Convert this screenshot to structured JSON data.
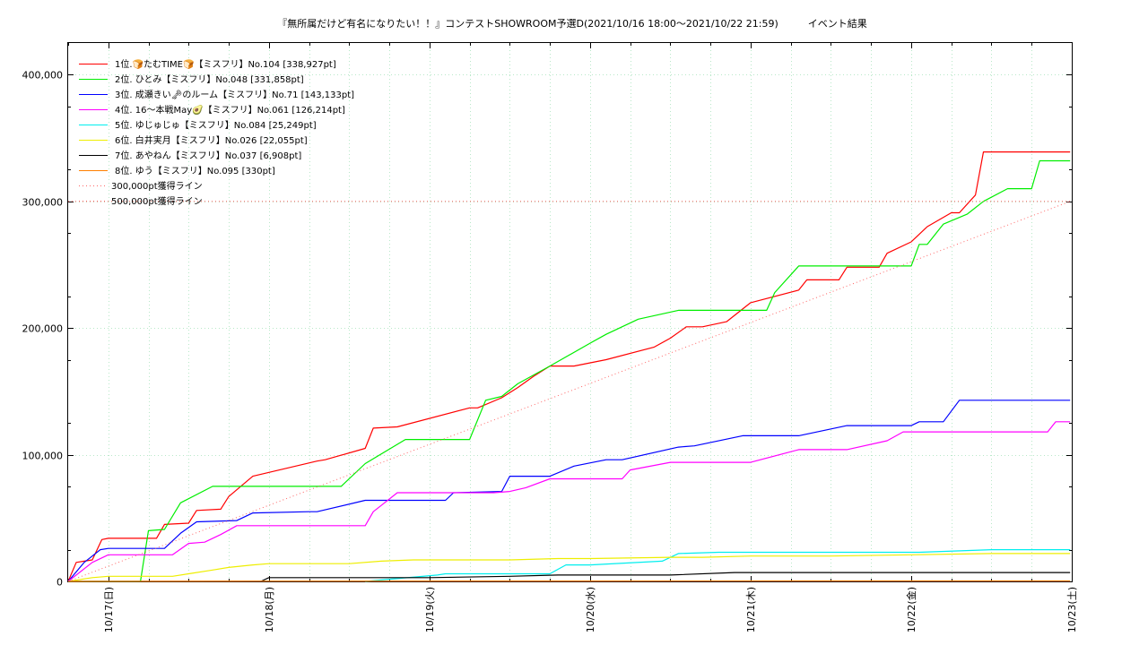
{
  "chart_data": {
    "type": "line",
    "title": "『無所属だけど有名になりたい！！』コンテストSHOWROOM予選D(2021/10/16 18:00～2021/10/22 21:59)　　　イベント結果",
    "xlabel": "",
    "ylabel": "",
    "ylim": [
      0,
      425000
    ],
    "y_ticks": [
      0,
      100000,
      200000,
      300000,
      400000
    ],
    "y_tick_labels": [
      "0",
      "100,000",
      "200,000",
      "300,000",
      "400,000"
    ],
    "x_unit": "days since 2021/10/16 00:00",
    "xlim": [
      0.75,
      7.0
    ],
    "x_ticks": [
      1,
      2,
      3,
      4,
      5,
      6,
      7
    ],
    "x_tick_labels": [
      "10/17(日)",
      "10/18(月)",
      "10/19(火)",
      "10/20(水)",
      "10/21(木)",
      "10/22(金)",
      "10/23(土)"
    ],
    "grid": true,
    "legend_position": "top-left",
    "series": [
      {
        "name": "1位.🍞たむTIME🍞【ミスフリ】No.104 [338,927pt]",
        "color": "#ff0000",
        "style": "solid",
        "x": [
          0.75,
          0.8,
          0.85,
          0.9,
          0.96,
          1.0,
          1.3,
          1.35,
          1.5,
          1.55,
          1.7,
          1.75,
          1.9,
          2.3,
          2.35,
          2.6,
          2.65,
          2.8,
          3.25,
          3.3,
          3.45,
          3.55,
          3.65,
          3.75,
          3.9,
          4.1,
          4.4,
          4.5,
          4.6,
          4.7,
          4.85,
          5.0,
          5.3,
          5.35,
          5.55,
          5.6,
          5.8,
          5.85,
          6.0,
          6.1,
          6.25,
          6.3,
          6.4,
          6.45,
          6.6,
          6.75,
          6.78,
          6.82,
          6.99
        ],
        "y": [
          0,
          15000,
          16000,
          17000,
          33000,
          34000,
          34000,
          45000,
          46000,
          56000,
          57000,
          67000,
          83000,
          95000,
          96000,
          105000,
          121000,
          122000,
          137000,
          137000,
          145000,
          153000,
          162000,
          170000,
          170000,
          175000,
          185000,
          192000,
          201000,
          201000,
          205000,
          220000,
          230000,
          238000,
          238000,
          248000,
          248000,
          259000,
          268000,
          280000,
          291000,
          291000,
          305000,
          339000,
          339000,
          339000,
          339000,
          339000,
          339000
        ]
      },
      {
        "name": "2位. ひとみ【ミスフリ】No.048 [331,858pt]",
        "color": "#00ee00",
        "style": "solid",
        "x": [
          0.75,
          1.2,
          1.25,
          1.35,
          1.45,
          1.65,
          1.85,
          2.2,
          2.45,
          2.6,
          2.85,
          2.95,
          3.25,
          3.35,
          3.45,
          3.55,
          3.75,
          4.0,
          4.1,
          4.3,
          4.55,
          4.75,
          5.1,
          5.15,
          5.3,
          5.6,
          6.0,
          6.05,
          6.1,
          6.2,
          6.35,
          6.45,
          6.6,
          6.75,
          6.8,
          6.99
        ],
        "y": [
          0,
          0,
          40000,
          41000,
          62000,
          75000,
          75000,
          75000,
          75000,
          93000,
          112000,
          112000,
          112000,
          143000,
          146000,
          156000,
          170000,
          188000,
          195000,
          207000,
          214000,
          214000,
          214000,
          228000,
          249000,
          249000,
          249000,
          266000,
          266000,
          282000,
          290000,
          300000,
          310000,
          310000,
          332000,
          332000
        ],
        "note": ""
      },
      {
        "name": "3位. 成瀬きい🗝のルーム【ミスフリ】No.71 [143,133pt]",
        "color": "#0000ff",
        "style": "solid",
        "x": [
          0.75,
          0.85,
          0.9,
          0.95,
          1.0,
          1.35,
          1.45,
          1.55,
          1.8,
          1.9,
          2.25,
          2.3,
          2.6,
          2.7,
          3.1,
          3.15,
          3.45,
          3.5,
          3.75,
          3.9,
          4.1,
          4.2,
          4.55,
          4.65,
          4.95,
          5.0,
          5.3,
          5.6,
          5.7,
          6.0,
          6.05,
          6.2,
          6.3,
          6.99
        ],
        "y": [
          0,
          15000,
          20000,
          25000,
          26000,
          26000,
          38000,
          47000,
          48000,
          54000,
          55000,
          55000,
          64000,
          64000,
          64000,
          70000,
          71000,
          83000,
          83000,
          91000,
          96000,
          96000,
          106000,
          107000,
          115000,
          115000,
          115000,
          123000,
          123000,
          123000,
          126000,
          126000,
          143000,
          143000
        ]
      },
      {
        "name": "4位. 16〜本戦May🥑【ミスフリ】No.061 [126,214pt]",
        "color": "#ff00ff",
        "style": "solid",
        "x": [
          0.75,
          0.9,
          1.0,
          1.4,
          1.5,
          1.6,
          1.7,
          1.8,
          2.2,
          2.6,
          2.65,
          2.7,
          2.8,
          3.0,
          3.4,
          3.5,
          3.6,
          3.75,
          3.85,
          4.2,
          4.25,
          4.5,
          4.6,
          4.95,
          5.0,
          5.3,
          5.55,
          5.6,
          5.85,
          5.95,
          6.0,
          6.85,
          6.9,
          6.99
        ],
        "y": [
          0,
          15000,
          21000,
          21000,
          30000,
          31000,
          37000,
          44000,
          44000,
          44000,
          55000,
          60000,
          70000,
          70000,
          70000,
          71000,
          74000,
          81000,
          81000,
          81000,
          88000,
          94000,
          94000,
          94000,
          94000,
          104000,
          104000,
          104000,
          111000,
          118000,
          118000,
          118000,
          126000,
          126000
        ]
      },
      {
        "name": "5位. ゆじゅじゅ【ミスフリ】No.084 [25,249pt]",
        "color": "#00eeee",
        "style": "solid",
        "x": [
          2.6,
          3.05,
          3.1,
          3.3,
          3.75,
          3.85,
          4.0,
          4.45,
          4.55,
          4.8,
          5.3,
          5.8,
          5.95,
          6.05,
          6.5,
          6.99
        ],
        "y": [
          0,
          5000,
          6000,
          6000,
          6000,
          13000,
          13000,
          16000,
          22000,
          23000,
          23000,
          23000,
          23000,
          23000,
          25000,
          25000
        ]
      },
      {
        "name": "6位. 白井実月【ミスフリ】No.026 [22,055pt]",
        "color": "#eeee00",
        "style": "solid",
        "x": [
          0.75,
          0.9,
          1.0,
          1.4,
          1.5,
          1.65,
          1.75,
          1.9,
          2.0,
          2.5,
          2.7,
          2.9,
          3.5,
          3.8,
          4.0,
          4.5,
          4.7,
          5.0,
          5.5,
          6.0,
          6.5,
          6.99
        ],
        "y": [
          0,
          3000,
          4000,
          4000,
          6000,
          9000,
          11000,
          13000,
          14000,
          14000,
          16000,
          17000,
          17000,
          18000,
          18000,
          19000,
          19000,
          20000,
          20000,
          21000,
          22000,
          22000
        ]
      },
      {
        "name": "7位. あやねん【ミスフリ】No.037 [6,908pt]",
        "color": "#000000",
        "style": "solid",
        "x": [
          0.75,
          1.5,
          1.95,
          2.0,
          2.5,
          3.0,
          3.5,
          3.8,
          4.0,
          4.5,
          4.9,
          5.0,
          5.5,
          6.0,
          6.5,
          6.99
        ],
        "y": [
          0,
          0,
          0,
          3000,
          3000,
          3000,
          4000,
          5000,
          5000,
          5000,
          7000,
          7000,
          7000,
          7000,
          7000,
          7000
        ]
      },
      {
        "name": "8位. ゆう【ミスフリ】No.095 [330pt]",
        "color": "#ff7f00",
        "style": "solid",
        "x": [
          0.75,
          2.0,
          4.0,
          6.0,
          6.99
        ],
        "y": [
          0,
          200,
          300,
          330,
          330
        ]
      },
      {
        "name": "300,000pt獲得ライン",
        "color": "#ff6666",
        "style": "dotted",
        "x": [
          0.75,
          6.99
        ],
        "y": [
          0,
          300000
        ]
      },
      {
        "name": "500,000pt獲得ライン",
        "color": "#ff6666",
        "style": "dotted",
        "x": [
          0.75,
          6.99
        ],
        "y": [
          300000,
          300000
        ]
      }
    ]
  }
}
